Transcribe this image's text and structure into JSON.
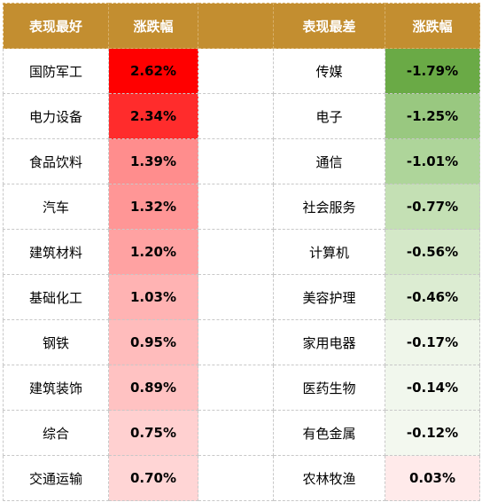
{
  "headers": {
    "best": "表现最好",
    "best_change": "涨跌幅",
    "worst": "表现最差",
    "worst_change": "涨跌幅"
  },
  "rows": [
    {
      "best": "国防军工",
      "best_change": "2.62%",
      "best_color": "#ff0000",
      "worst": "传媒",
      "worst_change": "-1.79%",
      "worst_color": "#6aaa46"
    },
    {
      "best": "电力设备",
      "best_change": "2.34%",
      "best_color": "#ff2c2c",
      "worst": "电子",
      "worst_change": "-1.25%",
      "worst_color": "#99c880"
    },
    {
      "best": "食品饮料",
      "best_change": "1.39%",
      "best_color": "#ff8d8d",
      "worst": "通信",
      "worst_change": "-1.01%",
      "worst_color": "#aed59a"
    },
    {
      "best": "汽车",
      "best_change": "1.32%",
      "best_color": "#ff9696",
      "worst": "社会服务",
      "worst_change": "-0.77%",
      "worst_color": "#c4e0b4"
    },
    {
      "best": "建筑材料",
      "best_change": "1.20%",
      "best_color": "#ffa2a2",
      "worst": "计算机",
      "worst_change": "-0.56%",
      "worst_color": "#d4e8c8"
    },
    {
      "best": "基础化工",
      "best_change": "1.03%",
      "best_color": "#ffb3b3",
      "worst": "美容护理",
      "worst_change": "-0.46%",
      "worst_color": "#dcecd2"
    },
    {
      "best": "钢铁",
      "best_change": "0.95%",
      "best_color": "#ffbcbc",
      "worst": "家用电器",
      "worst_change": "-0.17%",
      "worst_color": "#eff6ea"
    },
    {
      "best": "建筑装饰",
      "best_change": "0.89%",
      "best_color": "#ffc2c2",
      "worst": "医药生物",
      "worst_change": "-0.14%",
      "worst_color": "#f1f7ed"
    },
    {
      "best": "综合",
      "best_change": "0.75%",
      "best_color": "#ffd0d0",
      "worst": "有色金属",
      "worst_change": "-0.12%",
      "worst_color": "#f3f8ef"
    },
    {
      "best": "交通运输",
      "best_change": "0.70%",
      "best_color": "#ffd5d5",
      "worst": "农林牧渔",
      "worst_change": "0.03%",
      "worst_color": "#ffeaea"
    }
  ]
}
